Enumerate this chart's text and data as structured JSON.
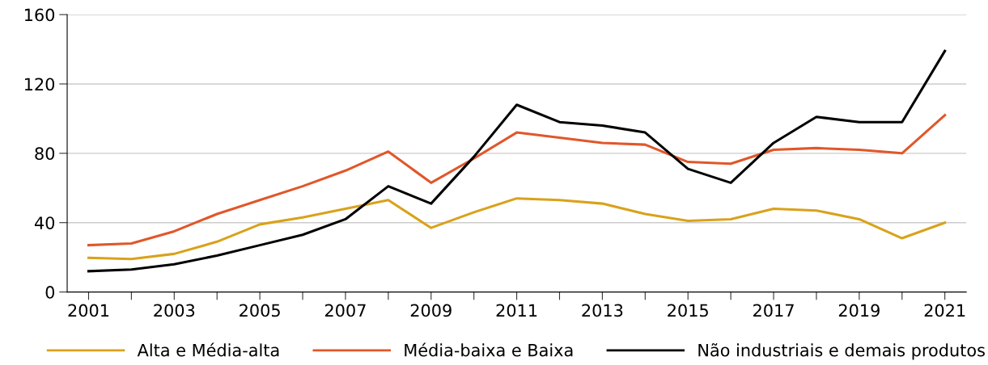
{
  "chart_data": {
    "type": "line",
    "x": [
      2001,
      2002,
      2003,
      2004,
      2005,
      2006,
      2007,
      2008,
      2009,
      2010,
      2011,
      2012,
      2013,
      2014,
      2015,
      2016,
      2017,
      2018,
      2019,
      2020,
      2021
    ],
    "series": [
      {
        "name": "Alta e Média-alta",
        "color": "#d9a21b",
        "values": [
          19.7,
          19,
          22,
          29,
          39,
          43,
          48,
          53,
          37,
          46,
          54,
          53,
          51,
          45,
          41,
          42,
          48,
          47,
          42,
          31,
          40
        ]
      },
      {
        "name": "Média-baixa e Baixa",
        "color": "#e0572a",
        "values": [
          27,
          28,
          35,
          45,
          53,
          61,
          70,
          81,
          63,
          77,
          92,
          89,
          86,
          85,
          75,
          74,
          82,
          83,
          82,
          80,
          102
        ]
      },
      {
        "name": "Não industriais e demais produtos",
        "color": "#000000",
        "values": [
          12,
          13,
          16,
          21,
          27,
          33,
          42,
          61,
          51,
          78,
          108,
          98,
          96,
          92,
          71,
          63,
          86,
          101,
          98,
          98,
          139
        ]
      }
    ],
    "xlim": [
      2000.5,
      2021.5
    ],
    "xticks": [
      2001,
      {
        "value": 2002,
        "label": null
      },
      2003,
      {
        "value": 2004,
        "label": null
      },
      2005,
      {
        "value": 2006,
        "label": null
      },
      2007,
      {
        "value": 2008,
        "label": null
      },
      2009,
      {
        "value": 2010,
        "label": null
      },
      2011,
      {
        "value": 2012,
        "label": null
      },
      2013,
      {
        "value": 2014,
        "label": null
      },
      2015,
      {
        "value": 2016,
        "label": null
      },
      2017,
      {
        "value": 2018,
        "label": null
      },
      2019,
      {
        "value": 2020,
        "label": null
      },
      2021
    ],
    "ylim": [
      0,
      160
    ],
    "yticks": [
      0,
      40,
      80,
      120,
      160
    ],
    "grid": "y",
    "legend": "bottom",
    "marker": "none",
    "line_style": "solid"
  }
}
